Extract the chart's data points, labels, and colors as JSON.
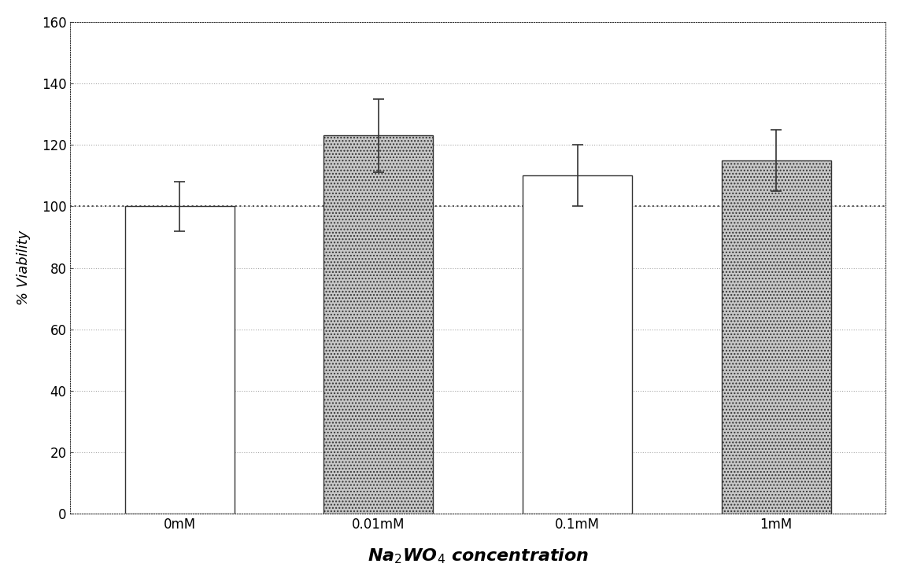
{
  "categories": [
    "0mM",
    "0.01mM",
    "0.1mM",
    "1mM"
  ],
  "values": [
    100,
    123,
    110,
    115
  ],
  "errors": [
    8,
    12,
    10,
    10
  ],
  "bar_colors_white": [
    "white",
    "white",
    "white",
    "white"
  ],
  "bar_fill": [
    false,
    true,
    false,
    true
  ],
  "bar_stipple_color": "#b0b0b0",
  "ylabel": "% Viability",
  "xlabel": "Na$_2$WO$_4$ concentration",
  "ylim": [
    0,
    160
  ],
  "yticks": [
    0,
    20,
    40,
    60,
    80,
    100,
    120,
    140,
    160
  ],
  "reference_line": 100,
  "background_color": "#ffffff",
  "bar_edge_color": "#333333",
  "axis_fontsize": 13,
  "xlabel_fontsize": 16,
  "tick_fontsize": 12
}
